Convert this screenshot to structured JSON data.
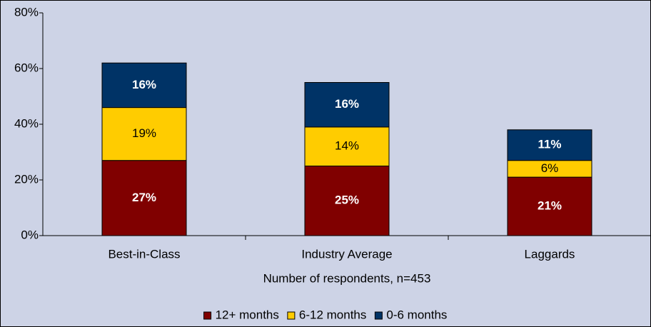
{
  "chart_data": {
    "type": "stacked_bar",
    "x_label": "Number of respondents, n=453",
    "categories": [
      "Best-in-Class",
      "Industry Average",
      "Laggards"
    ],
    "series": [
      {
        "name": "12+ months",
        "color": "#800000",
        "values": [
          27,
          25,
          21
        ],
        "value_labels": [
          "27%",
          "25%",
          "21%"
        ]
      },
      {
        "name": "6-12 months",
        "color": "#ffcc00",
        "values": [
          19,
          14,
          6
        ],
        "value_labels": [
          "19%",
          "14%",
          "6%"
        ]
      },
      {
        "name": "0-6 months",
        "color": "#003366",
        "values": [
          16,
          16,
          11
        ],
        "value_labels": [
          "16%",
          "16%",
          "11%"
        ]
      }
    ],
    "ylim": [
      0,
      80
    ],
    "yticks": [
      {
        "value": 0,
        "label": "0%"
      },
      {
        "value": 20,
        "label": "20%"
      },
      {
        "value": 40,
        "label": "40%"
      },
      {
        "value": 60,
        "label": "60%"
      },
      {
        "value": 80,
        "label": "80%"
      }
    ],
    "legend": "bottom"
  }
}
